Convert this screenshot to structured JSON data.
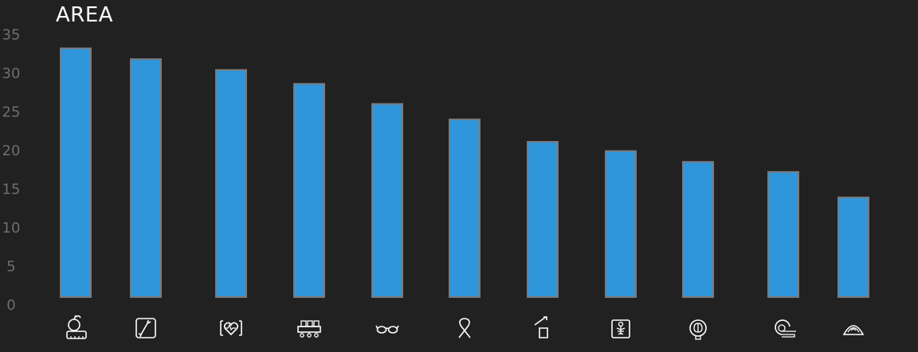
{
  "chart_data": {
    "type": "bar",
    "title": "AREA",
    "xlabel": "",
    "ylabel": "",
    "ylim": [
      0,
      35
    ],
    "yticks": [
      0,
      5,
      10,
      15,
      20,
      25,
      30,
      35
    ],
    "grid": false,
    "categories": [
      "nutrition-icon",
      "orthopedics-icon",
      "cardiology-icon",
      "hospital-beds-icon",
      "ophthalmology-icon",
      "oncology-ribbon-icon",
      "laboratory-sample-icon",
      "radiology-xray-icon",
      "neurology-icon",
      "mri-scanner-icon",
      "ultrasound-icon"
    ],
    "values": [
      32.2,
      30.8,
      29.4,
      27.6,
      25.0,
      23.0,
      20.1,
      18.9,
      17.5,
      16.2,
      12.9
    ]
  },
  "colors": {
    "background": "#212121",
    "bar_fill": "#2f96dc",
    "bar_stroke": "#7a7a7a",
    "tick_text": "#6e6e6e",
    "title_text": "#ffffff",
    "icon_stroke": "#ffffff"
  }
}
